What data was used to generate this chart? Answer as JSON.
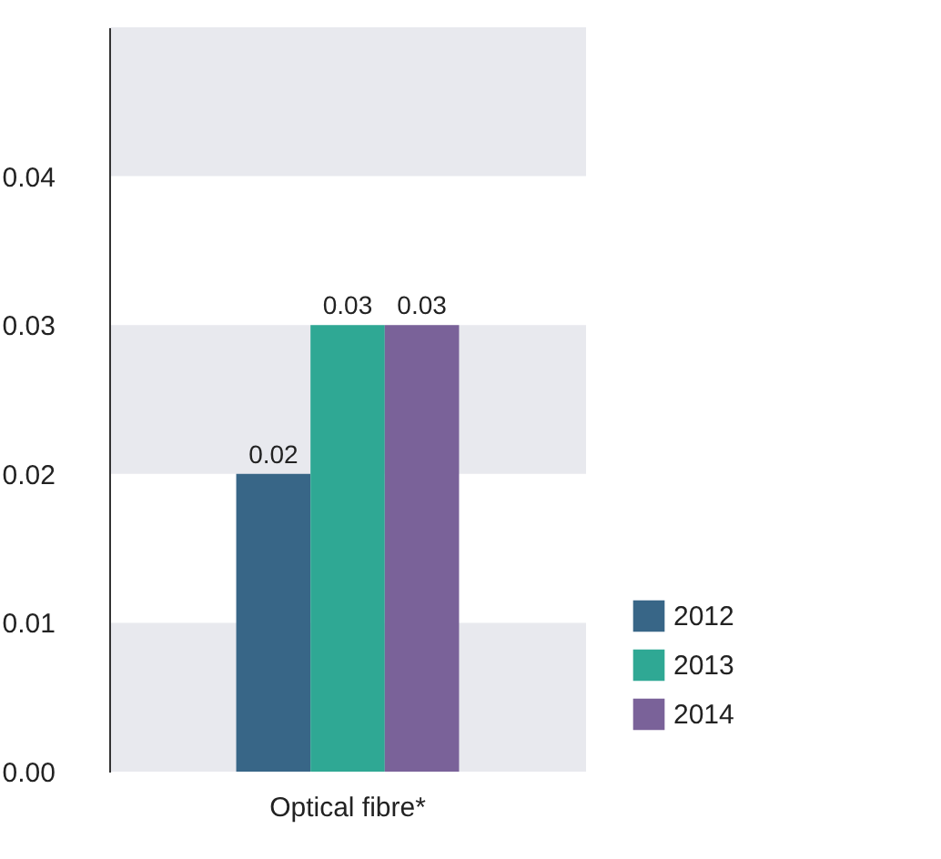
{
  "chart_data": {
    "type": "bar",
    "categories": [
      "Optical fibre*"
    ],
    "series": [
      {
        "name": "2012",
        "color": "#386687",
        "values": [
          0.02
        ]
      },
      {
        "name": "2013",
        "color": "#2fa894",
        "values": [
          0.03
        ]
      },
      {
        "name": "2014",
        "color": "#7a6299",
        "values": [
          0.03
        ]
      }
    ],
    "ylim": [
      0,
      0.05
    ],
    "yticks": [
      {
        "value": 0,
        "label": "0.00"
      },
      0.01,
      0.02,
      0.03,
      0.04
    ],
    "bands": [
      {
        "axis": "y",
        "from": 0,
        "to": 0.01,
        "color": "#e8e9ee"
      },
      {
        "axis": "y",
        "from": 0.02,
        "to": 0.03,
        "color": "#e8e9ee"
      },
      {
        "axis": "y",
        "from": 0.04,
        "to": 0.05,
        "color": "#e8e9ee"
      }
    ],
    "data_labels": true,
    "legend": "bottom right"
  }
}
